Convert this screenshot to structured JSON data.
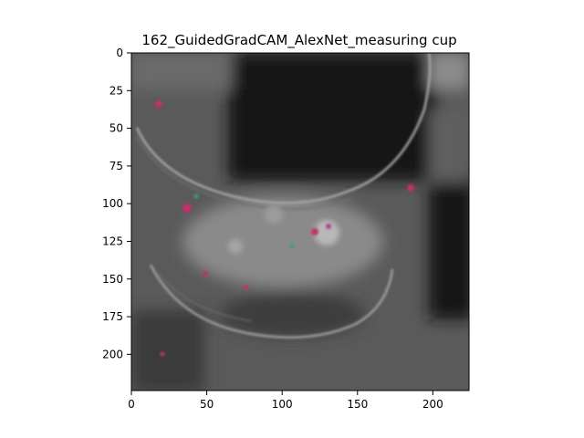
{
  "figure": {
    "title": "162_GuidedGradCAM_AlexNet_measuring cup"
  },
  "image_axes": {
    "x_ticks": [
      0,
      50,
      100,
      150,
      200
    ],
    "y_ticks": [
      0,
      25,
      50,
      75,
      100,
      125,
      150,
      175,
      200
    ],
    "x_range": [
      0,
      224
    ],
    "y_range": [
      0,
      224
    ],
    "y_inverted": true
  },
  "visualization": {
    "kind": "guided grad-cam saliency overlay",
    "subject": "measuring cup",
    "base_color": "#5a5a5a",
    "dark_color": "#141414",
    "edge_color": "#9a9a9a",
    "accent_color": "#c0306a"
  }
}
